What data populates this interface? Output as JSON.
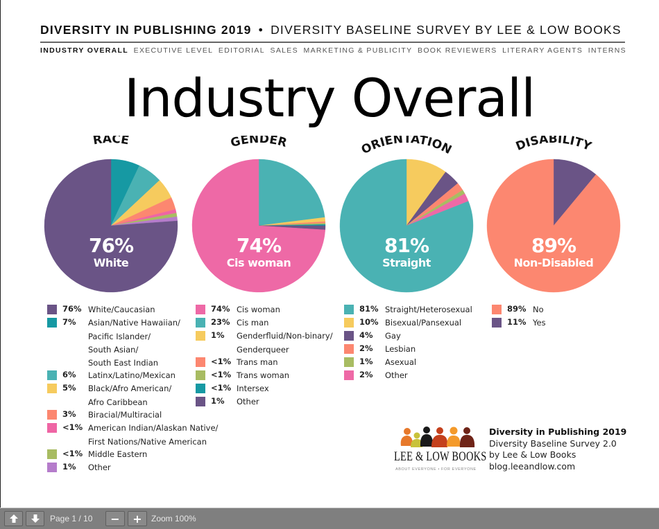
{
  "header": {
    "title_bold": "DIVERSITY IN PUBLISHING 2019",
    "separator": "•",
    "title_rest": "DIVERSITY BASELINE SURVEY BY LEE & LOW BOOKS"
  },
  "nav": {
    "items": [
      {
        "label": "INDUSTRY OVERALL",
        "active": true
      },
      {
        "label": "EXECUTIVE LEVEL",
        "active": false
      },
      {
        "label": "EDITORIAL",
        "active": false
      },
      {
        "label": "SALES",
        "active": false
      },
      {
        "label": "MARKETING & PUBLICITY",
        "active": false
      },
      {
        "label": "BOOK REVIEWERS",
        "active": false
      },
      {
        "label": "LITERARY AGENTS",
        "active": false
      },
      {
        "label": "INTERNS",
        "active": false
      }
    ]
  },
  "page_title": "Industry Overall",
  "chart_data": [
    {
      "type": "pie",
      "title": "RACE",
      "center_value": "76%",
      "center_label": "White",
      "slices": [
        {
          "pct_label": "76%",
          "label_lines": [
            "White/Caucasian"
          ],
          "value": 76,
          "color": "#6a5486"
        },
        {
          "pct_label": "7%",
          "label_lines": [
            "Asian/Native Hawaiian/",
            "Pacific Islander/",
            "South Asian/",
            "South East Indian"
          ],
          "value": 7,
          "color": "#1699a3"
        },
        {
          "pct_label": "6%",
          "label_lines": [
            "Latinx/Latino/Mexican"
          ],
          "value": 6,
          "color": "#4ab2b3"
        },
        {
          "pct_label": "5%",
          "label_lines": [
            "Black/Afro American/",
            "Afro Caribbean"
          ],
          "value": 5,
          "color": "#f6cb5e"
        },
        {
          "pct_label": "3%",
          "label_lines": [
            "Biracial/Multiracial"
          ],
          "value": 3,
          "color": "#fc8770"
        },
        {
          "pct_label": "<1%",
          "label_lines": [
            "American Indian/Alaskan Native/",
            "First Nations/Native American"
          ],
          "value": 0.9,
          "color": "#ef65a4"
        },
        {
          "pct_label": "<1%",
          "label_lines": [
            "Middle Eastern"
          ],
          "value": 0.9,
          "color": "#a8bc62"
        },
        {
          "pct_label": "1%",
          "label_lines": [
            "Other"
          ],
          "value": 1,
          "color": "#b57ccb"
        }
      ]
    },
    {
      "type": "pie",
      "title": "GENDER",
      "center_value": "74%",
      "center_label": "Cis woman",
      "slices": [
        {
          "pct_label": "74%",
          "label_lines": [
            "Cis woman"
          ],
          "value": 74,
          "color": "#ee69a6"
        },
        {
          "pct_label": "23%",
          "label_lines": [
            "Cis man"
          ],
          "value": 23,
          "color": "#4ab2b3"
        },
        {
          "pct_label": "1%",
          "label_lines": [
            "Genderfluid/Non-binary/",
            "Genderqueer"
          ],
          "value": 1,
          "color": "#f6cb5e"
        },
        {
          "pct_label": "<1%",
          "label_lines": [
            "Trans man"
          ],
          "value": 0.4,
          "color": "#fc8770"
        },
        {
          "pct_label": "<1%",
          "label_lines": [
            "Trans woman"
          ],
          "value": 0.3,
          "color": "#a8bc62"
        },
        {
          "pct_label": "<1%",
          "label_lines": [
            "Intersex"
          ],
          "value": 0.3,
          "color": "#1699a3"
        },
        {
          "pct_label": "1%",
          "label_lines": [
            "Other"
          ],
          "value": 1,
          "color": "#6a5486"
        }
      ]
    },
    {
      "type": "pie",
      "title": "ORIENTATION",
      "center_value": "81%",
      "center_label": "Straight",
      "slices": [
        {
          "pct_label": "81%",
          "label_lines": [
            "Straight/Heterosexual"
          ],
          "value": 81,
          "color": "#4ab2b3"
        },
        {
          "pct_label": "10%",
          "label_lines": [
            "Bisexual/Pansexual"
          ],
          "value": 10,
          "color": "#f6cb5e"
        },
        {
          "pct_label": "4%",
          "label_lines": [
            "Gay"
          ],
          "value": 4,
          "color": "#6a5486"
        },
        {
          "pct_label": "2%",
          "label_lines": [
            "Lesbian"
          ],
          "value": 2,
          "color": "#fc8770"
        },
        {
          "pct_label": "1%",
          "label_lines": [
            "Asexual"
          ],
          "value": 1,
          "color": "#a8bc62"
        },
        {
          "pct_label": "2%",
          "label_lines": [
            "Other"
          ],
          "value": 2,
          "color": "#ee69a6"
        }
      ]
    },
    {
      "type": "pie",
      "title": "DISABILITY",
      "center_value": "89%",
      "center_label": "Non-Disabled",
      "slices": [
        {
          "pct_label": "89%",
          "label_lines": [
            "No"
          ],
          "value": 89,
          "color": "#fc8770"
        },
        {
          "pct_label": "11%",
          "label_lines": [
            "Yes"
          ],
          "value": 11,
          "color": "#6a5486"
        }
      ]
    }
  ],
  "credit": {
    "line1": "Diversity in Publishing 2019",
    "line2": "Diversity Baseline Survey 2.0",
    "line3": "by Lee & Low Books",
    "line4": "blog.leeandlow.com"
  },
  "logo": {
    "wordmark": "LEE & LOW BOOKS",
    "tagline": "ABOUT EVERYONE • FOR EVERYONE"
  },
  "toolbar": {
    "page_label": "Page 1 / 10",
    "zoom_label": "Zoom 100%",
    "prev_icon": "arrow-up-icon",
    "next_icon": "arrow-down-icon",
    "zoom_out_glyph": "−",
    "zoom_in_glyph": "+"
  }
}
